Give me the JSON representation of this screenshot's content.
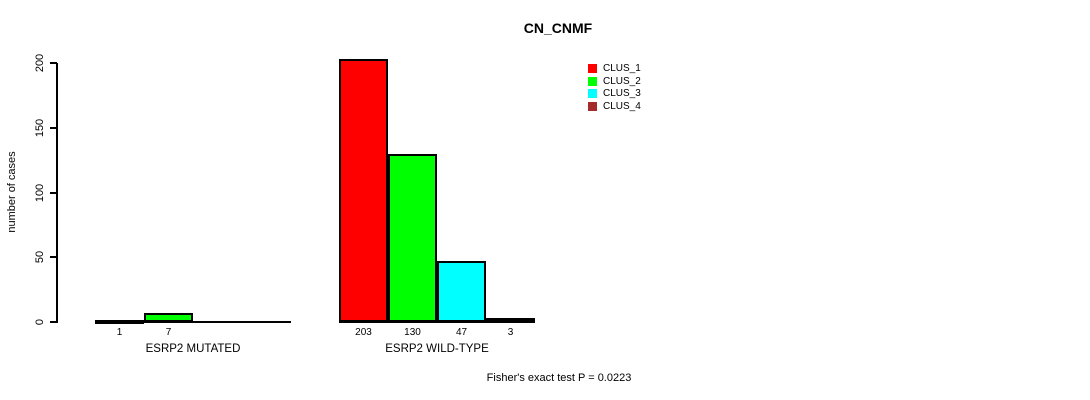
{
  "title": "CN_CNMF",
  "annotation": "Fisher's exact test P = 0.0223",
  "y_axis": {
    "label": "number of cases",
    "tick_labels": [
      "0",
      "50",
      "100",
      "150",
      "200"
    ]
  },
  "legend": {
    "items": [
      {
        "label": "CLUS_1",
        "color": "#FF0000"
      },
      {
        "label": "CLUS_2",
        "color": "#00FF00"
      },
      {
        "label": "CLUS_3",
        "color": "#00FFFF"
      },
      {
        "label": "CLUS_4",
        "color": "#A52A2A"
      }
    ]
  },
  "chart_data": {
    "type": "bar",
    "title": "CN_CNMF",
    "xlabel": "",
    "ylabel": "number of cases",
    "ylim": [
      0,
      200
    ],
    "yticks": [
      0,
      50,
      100,
      150,
      200
    ],
    "grid": false,
    "legend_position": "top-right",
    "categories": [
      "ESRP2 MUTATED",
      "ESRP2 WILD-TYPE"
    ],
    "series": [
      {
        "name": "CLUS_1",
        "color": "#FF0000",
        "values": [
          1,
          203
        ]
      },
      {
        "name": "CLUS_2",
        "color": "#00FF00",
        "values": [
          7,
          130
        ]
      },
      {
        "name": "CLUS_3",
        "color": "#00FFFF",
        "values": [
          0,
          47
        ]
      },
      {
        "name": "CLUS_4",
        "color": "#A52A2A",
        "values": [
          0,
          3
        ]
      }
    ],
    "bar_labels": [
      [
        "1",
        "7",
        "",
        ""
      ],
      [
        "203",
        "130",
        "47",
        "3"
      ]
    ],
    "annotation": "Fisher's exact test P = 0.0223"
  }
}
